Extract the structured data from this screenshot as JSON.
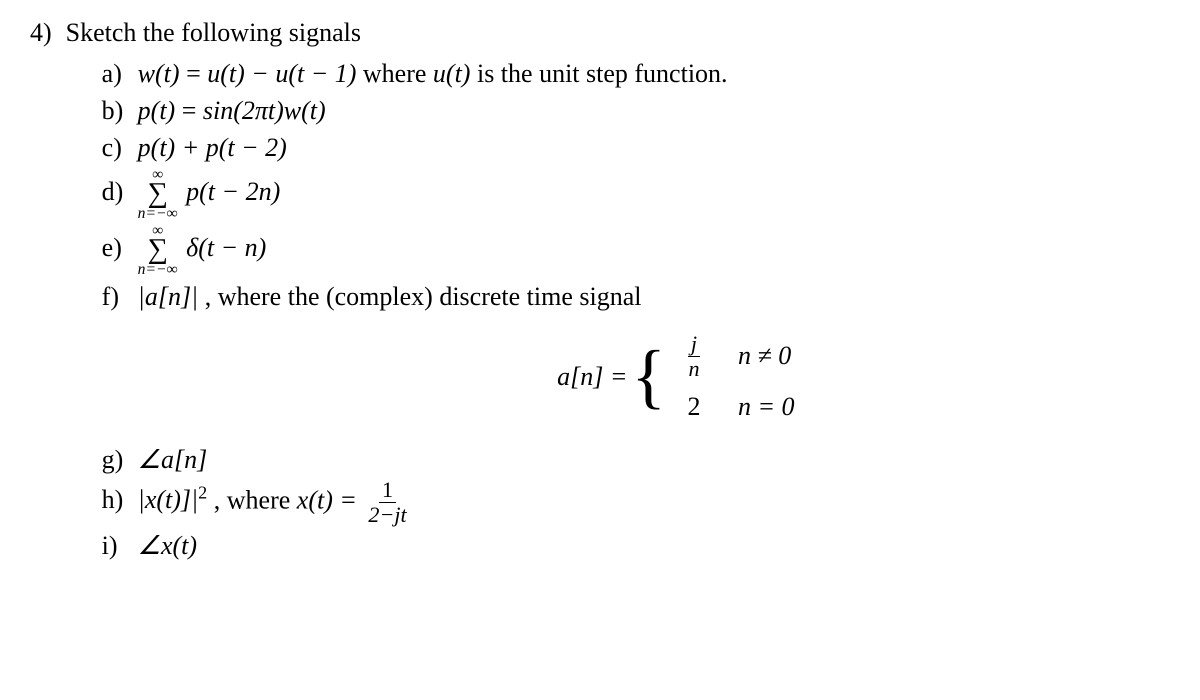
{
  "problem": {
    "number": "4)",
    "title": "Sketch the following signals",
    "text_color": "#000000",
    "background_color": "#ffffff",
    "font_family": "Times New Roman",
    "base_fontsize": 26
  },
  "items": {
    "a": {
      "label": "a)",
      "expr_lhs": "w(t)",
      "expr_rhs": "u(t) − u(t − 1)",
      "where_text": " where ",
      "where_subject": "u(t)",
      "where_desc": " is the unit step function."
    },
    "b": {
      "label": "b)",
      "expr_lhs": "p(t)",
      "expr_rhs": "sin(2πt)w(t)"
    },
    "c": {
      "label": "c)",
      "expr": "p(t) + p(t − 2)"
    },
    "d": {
      "label": "d)",
      "sum_upper": "∞",
      "sum_lower": "n=−∞",
      "summand": "p(t − 2n)"
    },
    "e": {
      "label": "e)",
      "sum_upper": "∞",
      "sum_lower": "n=−∞",
      "summand": "δ(t − n)"
    },
    "f": {
      "label": "f)",
      "expr": "|a[n]|",
      "desc_prefix": ", where the (complex) discrete time signal"
    },
    "g": {
      "label": "g)",
      "expr": "∠a[n]"
    },
    "h": {
      "label": "h)",
      "expr_lhs": "|x(t)]|",
      "expr_sup": "2",
      "where_text": ", where ",
      "where_lhs": "x(t) = ",
      "frac_num": "1",
      "frac_den": "2−jt"
    },
    "i": {
      "label": "i)",
      "expr": "∠x(t)"
    }
  },
  "equation": {
    "lhs": "a[n] = ",
    "case1_value_num": "j",
    "case1_value_den": "n",
    "case1_cond": "n ≠ 0",
    "case2_value": "2",
    "case2_cond": "n = 0"
  }
}
